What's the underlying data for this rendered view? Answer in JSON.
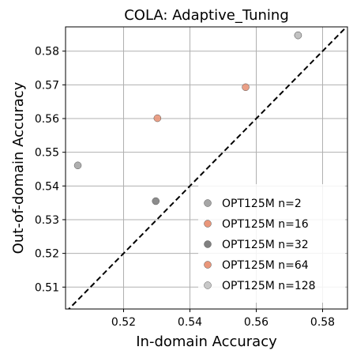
{
  "chart_data": {
    "type": "scatter",
    "title": "COLA: Adaptive_Tuning",
    "xlabel": "In-domain Accuracy",
    "ylabel": "Out-of-domain Accuracy",
    "xlim": [
      0.5025,
      0.5875
    ],
    "ylim": [
      0.5035,
      0.5872
    ],
    "xticks": [
      0.52,
      0.54,
      0.56,
      0.58
    ],
    "yticks": [
      0.51,
      0.52,
      0.53,
      0.54,
      0.55,
      0.56,
      0.57,
      0.58
    ],
    "grid": true,
    "legend_position": "lower-right",
    "diagonal_line": {
      "style": "dashed",
      "color": "#000000"
    },
    "series": [
      {
        "name": "OPT125M n=2",
        "color": "#a6a6a6",
        "points": [
          {
            "x": 0.5062,
            "y": 0.5461
          }
        ]
      },
      {
        "name": "OPT125M n=16",
        "color": "#e9967a",
        "points": [
          {
            "x": 0.5302,
            "y": 0.5601
          }
        ]
      },
      {
        "name": "OPT125M n=32",
        "color": "#808080",
        "points": [
          {
            "x": 0.5297,
            "y": 0.5355
          },
          {
            "x": 0.5726,
            "y": 0.5847
          }
        ]
      },
      {
        "name": "OPT125M n=64",
        "color": "#e9967a",
        "points": [
          {
            "x": 0.5568,
            "y": 0.5693
          }
        ]
      },
      {
        "name": "OPT125M n=128",
        "color": "#c8c8c8",
        "points": [
          {
            "x": 0.5726,
            "y": 0.5847
          }
        ]
      }
    ]
  }
}
